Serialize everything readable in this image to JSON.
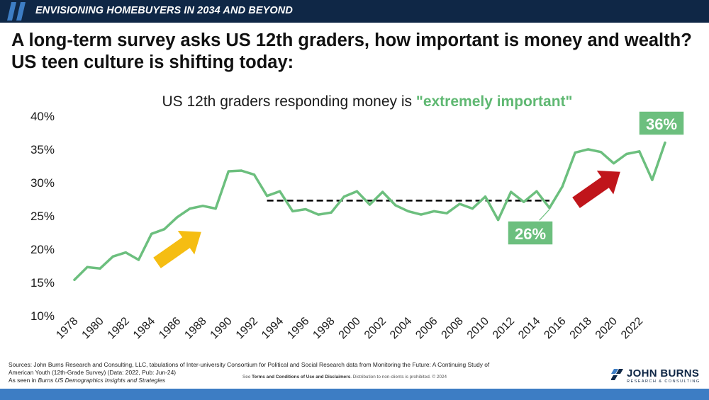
{
  "banner": {
    "text": "ENVISIONING HOMEBUYERS IN 2034 AND BEYOND"
  },
  "headline": "A long-term survey asks US 12th graders, how important is money and wealth? US teen culture is shifting today:",
  "chart_data": {
    "type": "line",
    "title_prefix": "US 12th graders responding money is ",
    "title_highlight": "\"extremely important\"",
    "x": [
      1978,
      1979,
      1980,
      1981,
      1982,
      1983,
      1984,
      1985,
      1986,
      1987,
      1988,
      1989,
      1990,
      1991,
      1992,
      1993,
      1994,
      1995,
      1996,
      1997,
      1998,
      1999,
      2000,
      2001,
      2002,
      2003,
      2004,
      2005,
      2006,
      2007,
      2008,
      2009,
      2010,
      2011,
      2012,
      2013,
      2014,
      2015,
      2016,
      2017,
      2018,
      2019,
      2020,
      2021,
      2022,
      2023,
      2024
    ],
    "values": [
      15.3,
      17.2,
      17.0,
      18.8,
      19.4,
      18.3,
      22.2,
      22.9,
      24.7,
      26.0,
      26.4,
      26.0,
      31.6,
      31.7,
      31.1,
      27.9,
      28.6,
      25.6,
      25.9,
      25.1,
      25.4,
      27.8,
      28.6,
      26.6,
      28.5,
      26.5,
      25.6,
      25.1,
      25.6,
      25.3,
      26.7,
      26.0,
      27.8,
      24.3,
      28.5,
      27.0,
      28.6,
      26.1,
      29.3,
      34.4,
      34.9,
      34.5,
      32.8,
      34.2,
      34.6,
      30.3,
      35.9
    ],
    "x_tick_labels": [
      "1978",
      "1980",
      "1982",
      "1984",
      "1986",
      "1988",
      "1990",
      "1992",
      "1994",
      "1996",
      "1998",
      "2000",
      "2002",
      "2004",
      "2006",
      "2008",
      "2010",
      "2012",
      "2014",
      "2016",
      "2018",
      "2020",
      "2022"
    ],
    "y_tick_labels": [
      "10%",
      "15%",
      "20%",
      "25%",
      "30%",
      "35%",
      "40%"
    ],
    "ylim": [
      10,
      40
    ],
    "xlim": [
      1978,
      2024
    ],
    "xlabel": "",
    "ylabel": "",
    "grid": false,
    "baseline": {
      "value": 27.2,
      "start": 1993,
      "end": 2015
    },
    "callouts": [
      {
        "label": "36%",
        "year": 2024,
        "value": 35.9
      },
      {
        "label": "26%",
        "year": 2015,
        "value": 26.1
      }
    ],
    "arrows": [
      {
        "name": "rising-trend-arrow-1980s",
        "color": "#f5bd12"
      },
      {
        "name": "rising-trend-arrow-2010s",
        "color": "#c0151b"
      }
    ],
    "colors": {
      "line": "#6cbf7e",
      "callout_bg": "#6cbf7e",
      "baseline": "#000000"
    }
  },
  "footer": {
    "sources_line1": "Sources: John Burns Research and Consulting, LLC, tabulations of Inter-university Consortium for Political and Social Research data from Monitoring the Future: A Continuing Study of",
    "sources_line2": "American Youth (12th-Grade Survey) (Data: 2022, Pub: Jun-24)",
    "seen_in_prefix": "As seen in ",
    "seen_in_title": "Burns US Demographics Insights and Strategies",
    "disclaimer_prefix": "See ",
    "disclaimer_bold": "Terms and Conditions of Use and Disclaimers",
    "disclaimer_suffix": ". Distribution to non-clients is prohibited. © 2024",
    "logo_name": "JOHN BURNS",
    "logo_sub": "RESEARCH & CONSULTING"
  },
  "colors": {
    "navy": "#0f2746",
    "accent_blue": "#3d7dc4"
  }
}
